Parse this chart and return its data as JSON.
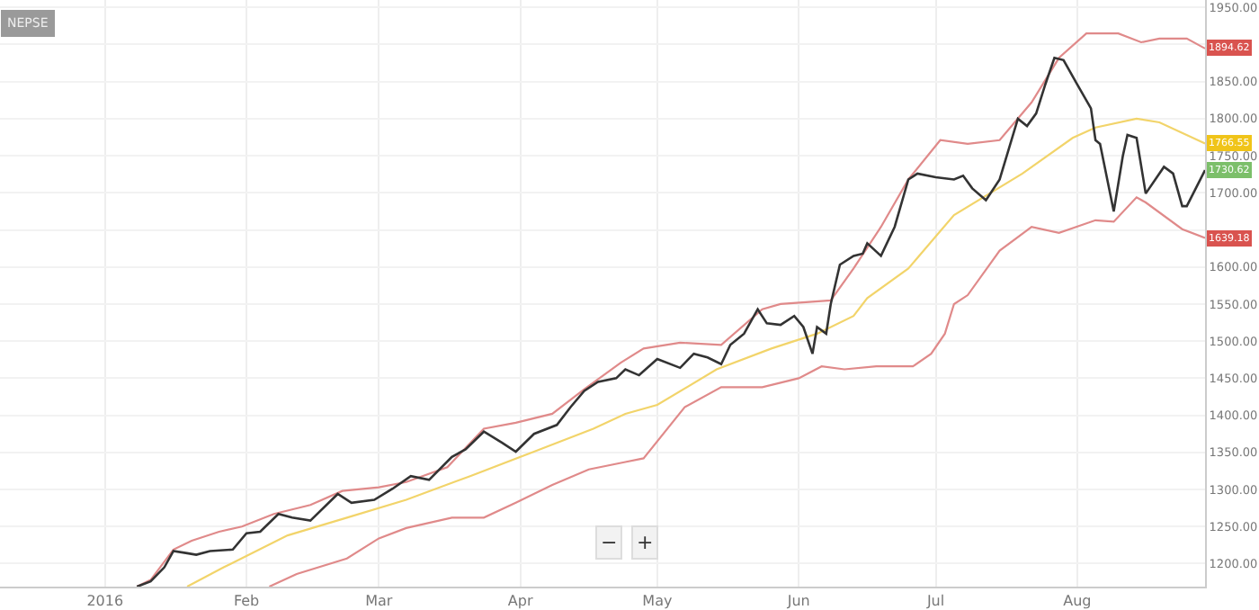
{
  "chart_data": {
    "type": "line",
    "title": "NEPSE",
    "xlim": [
      "2015-12-09",
      "2016-08-29"
    ],
    "xticks": [
      {
        "value": "2016-01-01",
        "label": "2016"
      },
      {
        "value": "2016-02-01",
        "label": "Feb"
      },
      {
        "value": "2016-03-01",
        "label": "Mar"
      },
      {
        "value": "2016-04-01",
        "label": "Apr"
      },
      {
        "value": "2016-05-01",
        "label": "May"
      },
      {
        "value": "2016-06-01",
        "label": "Jun"
      },
      {
        "value": "2016-07-01",
        "label": "Jul"
      },
      {
        "value": "2016-08-01",
        "label": "Aug"
      }
    ],
    "ylim": [
      1169,
      1960
    ],
    "yticks": [
      {
        "value": 1200,
        "label": "1200.00"
      },
      {
        "value": 1250,
        "label": "1250.00"
      },
      {
        "value": 1300,
        "label": "1300.00"
      },
      {
        "value": 1350,
        "label": "1350.00"
      },
      {
        "value": 1400,
        "label": "1400.00"
      },
      {
        "value": 1450,
        "label": "1450.00"
      },
      {
        "value": 1500,
        "label": "1500.00"
      },
      {
        "value": 1550,
        "label": "1550.00"
      },
      {
        "value": 1600,
        "label": "1600.00"
      },
      {
        "value": 1650,
        "label": null
      },
      {
        "value": 1700,
        "label": "1700.00"
      },
      {
        "value": 1750,
        "label": "1750.00"
      },
      {
        "value": 1800,
        "label": "1800.00"
      },
      {
        "value": 1850,
        "label": "1850.00"
      },
      {
        "value": 1900,
        "label": null
      },
      {
        "value": 1950,
        "label": "1950.00"
      }
    ],
    "grid": true,
    "marker": "none",
    "line_style": "solid",
    "series": [
      {
        "color": "#e08a8a",
        "x": [
          "2016-01-08",
          "2016-01-11",
          "2016-01-16",
          "2016-01-20",
          "2016-01-26",
          "2016-01-31",
          "2016-02-07",
          "2016-02-15",
          "2016-02-22",
          "2016-03-01",
          "2016-03-07",
          "2016-03-16",
          "2016-03-24",
          "2016-03-31",
          "2016-04-08",
          "2016-04-15",
          "2016-04-23",
          "2016-04-28",
          "2016-05-06",
          "2016-05-15",
          "2016-05-24",
          "2016-05-28",
          "2016-06-08",
          "2016-06-13",
          "2016-06-19",
          "2016-06-25",
          "2016-07-02",
          "2016-07-08",
          "2016-07-15",
          "2016-07-22",
          "2016-07-28",
          "2016-08-03",
          "2016-08-10",
          "2016-08-15",
          "2016-08-19",
          "2016-08-25",
          "2016-08-29"
        ],
        "values": [
          1169,
          1178,
          1219,
          1231,
          1243,
          1250,
          1267,
          1279,
          1298,
          1303,
          1310,
          1330,
          1382,
          1390,
          1402,
          1435,
          1471,
          1490,
          1498,
          1495,
          1543,
          1550,
          1555,
          1598,
          1654,
          1718,
          1771,
          1766,
          1771,
          1822,
          1882,
          1915,
          1915,
          1903,
          1908,
          1908,
          1894.62
        ]
      },
      {
        "color": "#f2d46a",
        "x": [
          "2016-01-19",
          "2016-01-27",
          "2016-02-10",
          "2016-02-23",
          "2016-03-07",
          "2016-03-21",
          "2016-04-04",
          "2016-04-17",
          "2016-04-24",
          "2016-05-01",
          "2016-05-14",
          "2016-05-26",
          "2016-06-05",
          "2016-06-13",
          "2016-06-16",
          "2016-06-25",
          "2016-07-05",
          "2016-07-20",
          "2016-07-31",
          "2016-08-05",
          "2016-08-14",
          "2016-08-19",
          "2016-08-29"
        ],
        "values": [
          1169,
          1195,
          1238,
          1262,
          1286,
          1318,
          1351,
          1382,
          1402,
          1414,
          1462,
          1490,
          1510,
          1534,
          1558,
          1598,
          1670,
          1726,
          1774,
          1788,
          1800,
          1795,
          1766.55
        ]
      },
      {
        "color": "#e08a8a",
        "x": [
          "2016-02-06",
          "2016-02-12",
          "2016-02-23",
          "2016-03-01",
          "2016-03-07",
          "2016-03-17",
          "2016-03-24",
          "2016-03-31",
          "2016-04-08",
          "2016-04-16",
          "2016-04-24",
          "2016-04-28",
          "2016-05-07",
          "2016-05-15",
          "2016-05-24",
          "2016-06-01",
          "2016-06-06",
          "2016-06-11",
          "2016-06-18",
          "2016-06-26",
          "2016-06-30",
          "2016-07-03",
          "2016-07-05",
          "2016-07-08",
          "2016-07-15",
          "2016-07-22",
          "2016-07-28",
          "2016-08-05",
          "2016-08-09",
          "2016-08-14",
          "2016-08-16",
          "2016-08-24",
          "2016-08-29"
        ],
        "values": [
          1169,
          1186,
          1207,
          1234,
          1248,
          1262,
          1262,
          1282,
          1306,
          1327,
          1337,
          1342,
          1411,
          1438,
          1438,
          1450,
          1466,
          1462,
          1466,
          1466,
          1483,
          1510,
          1550,
          1562,
          1622,
          1654,
          1646,
          1663,
          1661,
          1694,
          1687,
          1651,
          1639.18
        ]
      },
      {
        "color": "#333333",
        "x": [
          "2016-01-08",
          "2016-01-11",
          "2016-01-14",
          "2016-01-16",
          "2016-01-19",
          "2016-01-21",
          "2016-01-24",
          "2016-01-29",
          "2016-02-01",
          "2016-02-04",
          "2016-02-08",
          "2016-02-11",
          "2016-02-15",
          "2016-02-21",
          "2016-02-24",
          "2016-02-29",
          "2016-03-04",
          "2016-03-08",
          "2016-03-12",
          "2016-03-17",
          "2016-03-20",
          "2016-03-24",
          "2016-03-28",
          "2016-03-31",
          "2016-04-04",
          "2016-04-09",
          "2016-04-12",
          "2016-04-15",
          "2016-04-18",
          "2016-04-22",
          "2016-04-24",
          "2016-04-27",
          "2016-05-01",
          "2016-05-06",
          "2016-05-09",
          "2016-05-12",
          "2016-05-15",
          "2016-05-17",
          "2016-05-20",
          "2016-05-23",
          "2016-05-25",
          "2016-05-28",
          "2016-05-31",
          "2016-06-02",
          "2016-06-04",
          "2016-06-05",
          "2016-06-07",
          "2016-06-08",
          "2016-06-10",
          "2016-06-13",
          "2016-06-15",
          "2016-06-16",
          "2016-06-19",
          "2016-06-22",
          "2016-06-25",
          "2016-06-27",
          "2016-07-01",
          "2016-07-05",
          "2016-07-07",
          "2016-07-09",
          "2016-07-12",
          "2016-07-15",
          "2016-07-19",
          "2016-07-21",
          "2016-07-23",
          "2016-07-25",
          "2016-07-27",
          "2016-07-29",
          "2016-08-01",
          "2016-08-04",
          "2016-08-05",
          "2016-08-06",
          "2016-08-09",
          "2016-08-11",
          "2016-08-12",
          "2016-08-14",
          "2016-08-16",
          "2016-08-20",
          "2016-08-22",
          "2016-08-24",
          "2016-08-25",
          "2016-08-29"
        ],
        "values": [
          1169,
          1176,
          1195,
          1217,
          1214,
          1212,
          1217,
          1219,
          1241,
          1243,
          1267,
          1262,
          1258,
          1294,
          1282,
          1286,
          1301,
          1318,
          1313,
          1344,
          1354,
          1378,
          1363,
          1351,
          1375,
          1387,
          1411,
          1433,
          1445,
          1450,
          1462,
          1454,
          1476,
          1464,
          1483,
          1478,
          1469,
          1495,
          1510,
          1543,
          1524,
          1522,
          1534,
          1519,
          1483,
          1519,
          1510,
          1550,
          1603,
          1615,
          1618,
          1632,
          1615,
          1654,
          1718,
          1726,
          1721,
          1718,
          1723,
          1706,
          1690,
          1718,
          1800,
          1790,
          1807,
          1846,
          1882,
          1879,
          1846,
          1814,
          1771,
          1766,
          1675,
          1750,
          1778,
          1774,
          1699,
          1735,
          1726,
          1682,
          1682,
          1730.62
        ]
      }
    ],
    "annotations": [
      {
        "text": "1894.62",
        "x": "2016-08-29",
        "y": 1894.62
      },
      {
        "text": "1766.55",
        "x": "2016-08-29",
        "y": 1766.55
      },
      {
        "text": "1730.62",
        "x": "2016-08-29",
        "y": 1730.62
      },
      {
        "text": "1639.18",
        "x": "2016-08-29",
        "y": 1639.18
      },
      "−",
      "+"
    ]
  }
}
